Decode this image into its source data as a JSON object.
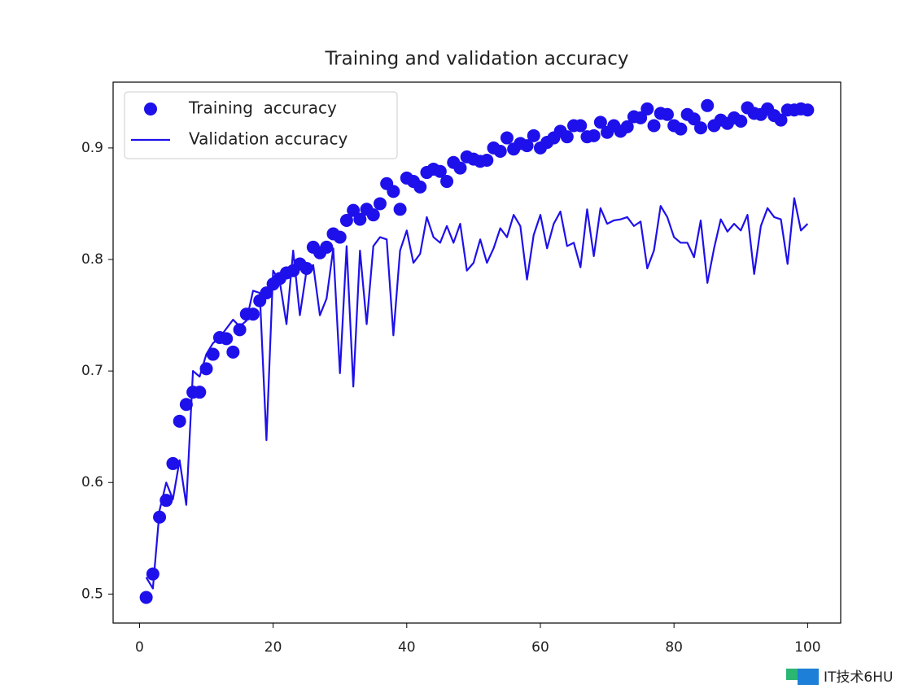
{
  "chart_data": {
    "type": "scatter_line",
    "title": "Training and validation accuracy",
    "x": [
      1,
      2,
      3,
      4,
      5,
      6,
      7,
      8,
      9,
      10,
      11,
      12,
      13,
      14,
      15,
      16,
      17,
      18,
      19,
      20,
      21,
      22,
      23,
      24,
      25,
      26,
      27,
      28,
      29,
      30,
      31,
      32,
      33,
      34,
      35,
      36,
      37,
      38,
      39,
      40,
      41,
      42,
      43,
      44,
      45,
      46,
      47,
      48,
      49,
      50,
      51,
      52,
      53,
      54,
      55,
      56,
      57,
      58,
      59,
      60,
      61,
      62,
      63,
      64,
      65,
      66,
      67,
      68,
      69,
      70,
      71,
      72,
      73,
      74,
      75,
      76,
      77,
      78,
      79,
      80,
      81,
      82,
      83,
      84,
      85,
      86,
      87,
      88,
      89,
      90,
      91,
      92,
      93,
      94,
      95,
      96,
      97,
      98,
      99,
      100
    ],
    "series": [
      {
        "name": "Training  accuracy",
        "color": "#1e10ea",
        "style": "dots",
        "values": [
          0.497,
          0.518,
          0.569,
          0.584,
          0.617,
          0.655,
          0.67,
          0.681,
          0.681,
          0.702,
          0.715,
          0.73,
          0.729,
          0.717,
          0.737,
          0.751,
          0.751,
          0.763,
          0.77,
          0.778,
          0.783,
          0.788,
          0.79,
          0.796,
          0.792,
          0.811,
          0.806,
          0.811,
          0.823,
          0.82,
          0.835,
          0.844,
          0.836,
          0.845,
          0.84,
          0.85,
          0.868,
          0.861,
          0.845,
          0.873,
          0.87,
          0.865,
          0.878,
          0.881,
          0.879,
          0.87,
          0.887,
          0.882,
          0.892,
          0.89,
          0.888,
          0.889,
          0.9,
          0.897,
          0.909,
          0.899,
          0.904,
          0.902,
          0.911,
          0.9,
          0.905,
          0.909,
          0.915,
          0.91,
          0.92,
          0.92,
          0.91,
          0.911,
          0.923,
          0.914,
          0.92,
          0.915,
          0.919,
          0.928,
          0.927,
          0.935,
          0.92,
          0.931,
          0.93,
          0.92,
          0.917,
          0.93,
          0.926,
          0.918,
          0.938,
          0.92,
          0.925,
          0.922,
          0.927,
          0.924,
          0.936,
          0.931,
          0.93,
          0.935,
          0.929,
          0.925,
          0.934,
          0.934,
          0.935,
          0.934
        ]
      },
      {
        "name": "Validation accuracy",
        "color": "#1e10ea",
        "style": "line",
        "values": [
          0.515,
          0.505,
          0.575,
          0.6,
          0.585,
          0.62,
          0.58,
          0.7,
          0.695,
          0.715,
          0.725,
          0.73,
          0.738,
          0.746,
          0.74,
          0.745,
          0.772,
          0.77,
          0.638,
          0.79,
          0.78,
          0.742,
          0.808,
          0.75,
          0.79,
          0.795,
          0.75,
          0.765,
          0.81,
          0.698,
          0.812,
          0.686,
          0.808,
          0.742,
          0.812,
          0.82,
          0.818,
          0.732,
          0.808,
          0.826,
          0.797,
          0.805,
          0.838,
          0.82,
          0.815,
          0.83,
          0.815,
          0.832,
          0.79,
          0.797,
          0.818,
          0.797,
          0.81,
          0.828,
          0.82,
          0.84,
          0.83,
          0.782,
          0.822,
          0.84,
          0.81,
          0.832,
          0.843,
          0.812,
          0.815,
          0.793,
          0.845,
          0.803,
          0.846,
          0.832,
          0.835,
          0.836,
          0.838,
          0.83,
          0.834,
          0.792,
          0.808,
          0.848,
          0.838,
          0.82,
          0.815,
          0.815,
          0.802,
          0.835,
          0.779,
          0.81,
          0.836,
          0.825,
          0.832,
          0.826,
          0.84,
          0.787,
          0.83,
          0.846,
          0.838,
          0.836,
          0.796,
          0.855,
          0.826,
          0.832
        ]
      }
    ],
    "xlim": [
      -3.95,
      104.95
    ],
    "ylim": [
      0.474,
      0.959
    ],
    "xticks": [
      0,
      20,
      40,
      60,
      80,
      100
    ],
    "yticks": [
      0.5,
      0.6,
      0.7,
      0.8,
      0.9
    ],
    "legend": "upper left",
    "watermark": "IT技术6HU"
  }
}
